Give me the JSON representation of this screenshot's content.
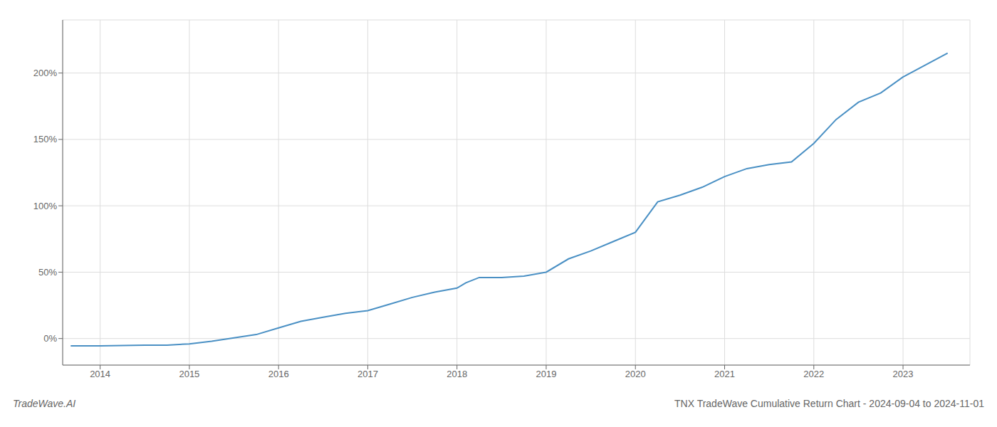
{
  "chart_data": {
    "type": "line",
    "x": [
      2013.67,
      2014.0,
      2014.25,
      2014.5,
      2014.75,
      2015.0,
      2015.25,
      2015.5,
      2015.75,
      2016.0,
      2016.25,
      2016.5,
      2016.75,
      2017.0,
      2017.25,
      2017.5,
      2017.75,
      2018.0,
      2018.1,
      2018.25,
      2018.5,
      2018.75,
      2019.0,
      2019.25,
      2019.5,
      2019.75,
      2020.0,
      2020.25,
      2020.5,
      2020.75,
      2021.0,
      2021.25,
      2021.5,
      2021.75,
      2022.0,
      2022.25,
      2022.5,
      2022.75,
      2023.0,
      2023.5
    ],
    "values": [
      -5.5,
      -5.5,
      -5.3,
      -5.0,
      -5.0,
      -4.0,
      -2.0,
      0.5,
      3.0,
      8.0,
      13.0,
      16.0,
      19.0,
      21.0,
      26.0,
      31.0,
      35.0,
      38.0,
      42.0,
      46.0,
      46.0,
      47.0,
      50.0,
      60.0,
      66.0,
      73.0,
      80.0,
      103.0,
      108.0,
      114.0,
      122.0,
      128.0,
      131.0,
      133.0,
      147.0,
      165.0,
      178.0,
      185.0,
      197.0,
      215.0
    ],
    "color": "#4a90c4",
    "xlim": [
      2013.58,
      2023.75
    ],
    "ylim": [
      -20,
      240
    ],
    "xticks": [
      2014,
      2015,
      2016,
      2017,
      2018,
      2019,
      2020,
      2021,
      2022,
      2023
    ],
    "yticks": [
      {
        "value": 0,
        "label": "0%"
      },
      {
        "value": 50,
        "label": "50%"
      },
      {
        "value": 100,
        "label": "100%"
      },
      {
        "value": 150,
        "label": "150%"
      },
      {
        "value": 200,
        "label": "200%"
      }
    ],
    "grid": true,
    "annotations": [
      "TradeWave.AI",
      "TNX TradeWave Cumulative Return Chart - 2024-09-04 to 2024-11-01"
    ]
  }
}
